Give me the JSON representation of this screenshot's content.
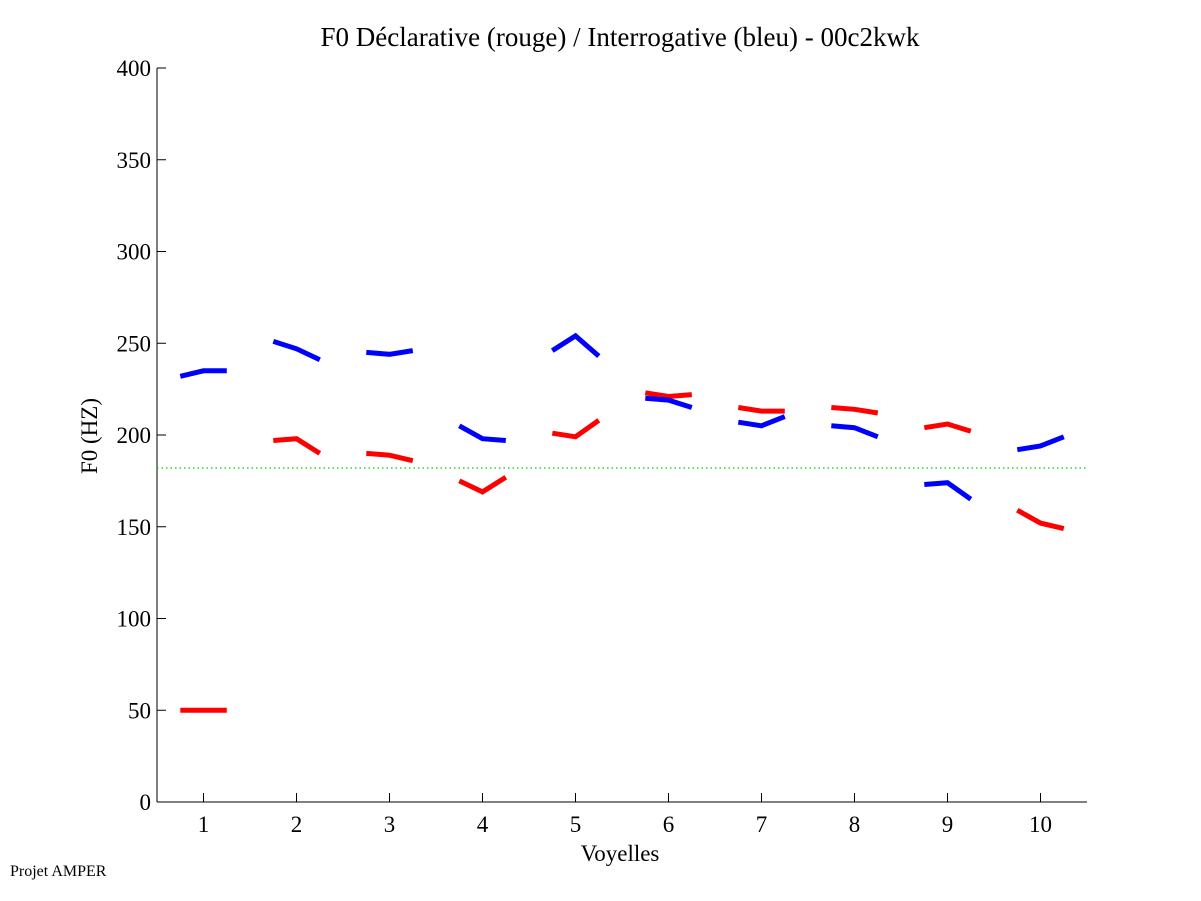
{
  "chart_data": {
    "type": "line",
    "title": "F0 Déclarative (rouge) / Interrogative (bleu) - 00c2kwk",
    "xlabel": "Voyelles",
    "ylabel": "F0 (HZ)",
    "xlim": [
      0.5,
      10.5
    ],
    "ylim": [
      0,
      400
    ],
    "xticks": [
      1,
      2,
      3,
      4,
      5,
      6,
      7,
      8,
      9,
      10
    ],
    "yticks": [
      0,
      50,
      100,
      150,
      200,
      250,
      300,
      350,
      400
    ],
    "reference_line": {
      "y": 182,
      "color": "#00cc00",
      "style": "dotted"
    },
    "series": [
      {
        "name": "Déclarative",
        "color": "#ff0000",
        "segments": [
          {
            "x": [
              0.75,
              1.0,
              1.25
            ],
            "y": [
              50,
              50,
              50
            ]
          },
          {
            "x": [
              1.75,
              2.0,
              2.25
            ],
            "y": [
              197,
              198,
              190
            ]
          },
          {
            "x": [
              2.75,
              3.0,
              3.25
            ],
            "y": [
              190,
              189,
              186
            ]
          },
          {
            "x": [
              3.75,
              4.0,
              4.25
            ],
            "y": [
              175,
              169,
              177
            ]
          },
          {
            "x": [
              4.75,
              5.0,
              5.25
            ],
            "y": [
              201,
              199,
              208
            ]
          },
          {
            "x": [
              5.75,
              6.0,
              6.25
            ],
            "y": [
              223,
              221,
              222
            ]
          },
          {
            "x": [
              6.75,
              7.0,
              7.25
            ],
            "y": [
              215,
              213,
              213
            ]
          },
          {
            "x": [
              7.75,
              8.0,
              8.25
            ],
            "y": [
              215,
              214,
              212
            ]
          },
          {
            "x": [
              8.75,
              9.0,
              9.25
            ],
            "y": [
              204,
              206,
              202
            ]
          },
          {
            "x": [
              9.75,
              10.0,
              10.25
            ],
            "y": [
              159,
              152,
              149
            ]
          }
        ]
      },
      {
        "name": "Interrogative",
        "color": "#0000ff",
        "segments": [
          {
            "x": [
              0.75,
              1.0,
              1.25
            ],
            "y": [
              232,
              235,
              235
            ]
          },
          {
            "x": [
              1.75,
              2.0,
              2.25
            ],
            "y": [
              251,
              247,
              241
            ]
          },
          {
            "x": [
              2.75,
              3.0,
              3.25
            ],
            "y": [
              245,
              244,
              246
            ]
          },
          {
            "x": [
              3.75,
              4.0,
              4.25
            ],
            "y": [
              205,
              198,
              197
            ]
          },
          {
            "x": [
              4.75,
              5.0,
              5.25
            ],
            "y": [
              246,
              254,
              243
            ]
          },
          {
            "x": [
              5.75,
              6.0,
              6.25
            ],
            "y": [
              220,
              219,
              215
            ]
          },
          {
            "x": [
              6.75,
              7.0,
              7.25
            ],
            "y": [
              207,
              205,
              210
            ]
          },
          {
            "x": [
              7.75,
              8.0,
              8.25
            ],
            "y": [
              205,
              204,
              199
            ]
          },
          {
            "x": [
              8.75,
              9.0,
              9.25
            ],
            "y": [
              173,
              174,
              165
            ]
          },
          {
            "x": [
              9.75,
              10.0,
              10.25
            ],
            "y": [
              192,
              194,
              199
            ]
          }
        ]
      }
    ]
  },
  "footer": "Projet AMPER"
}
